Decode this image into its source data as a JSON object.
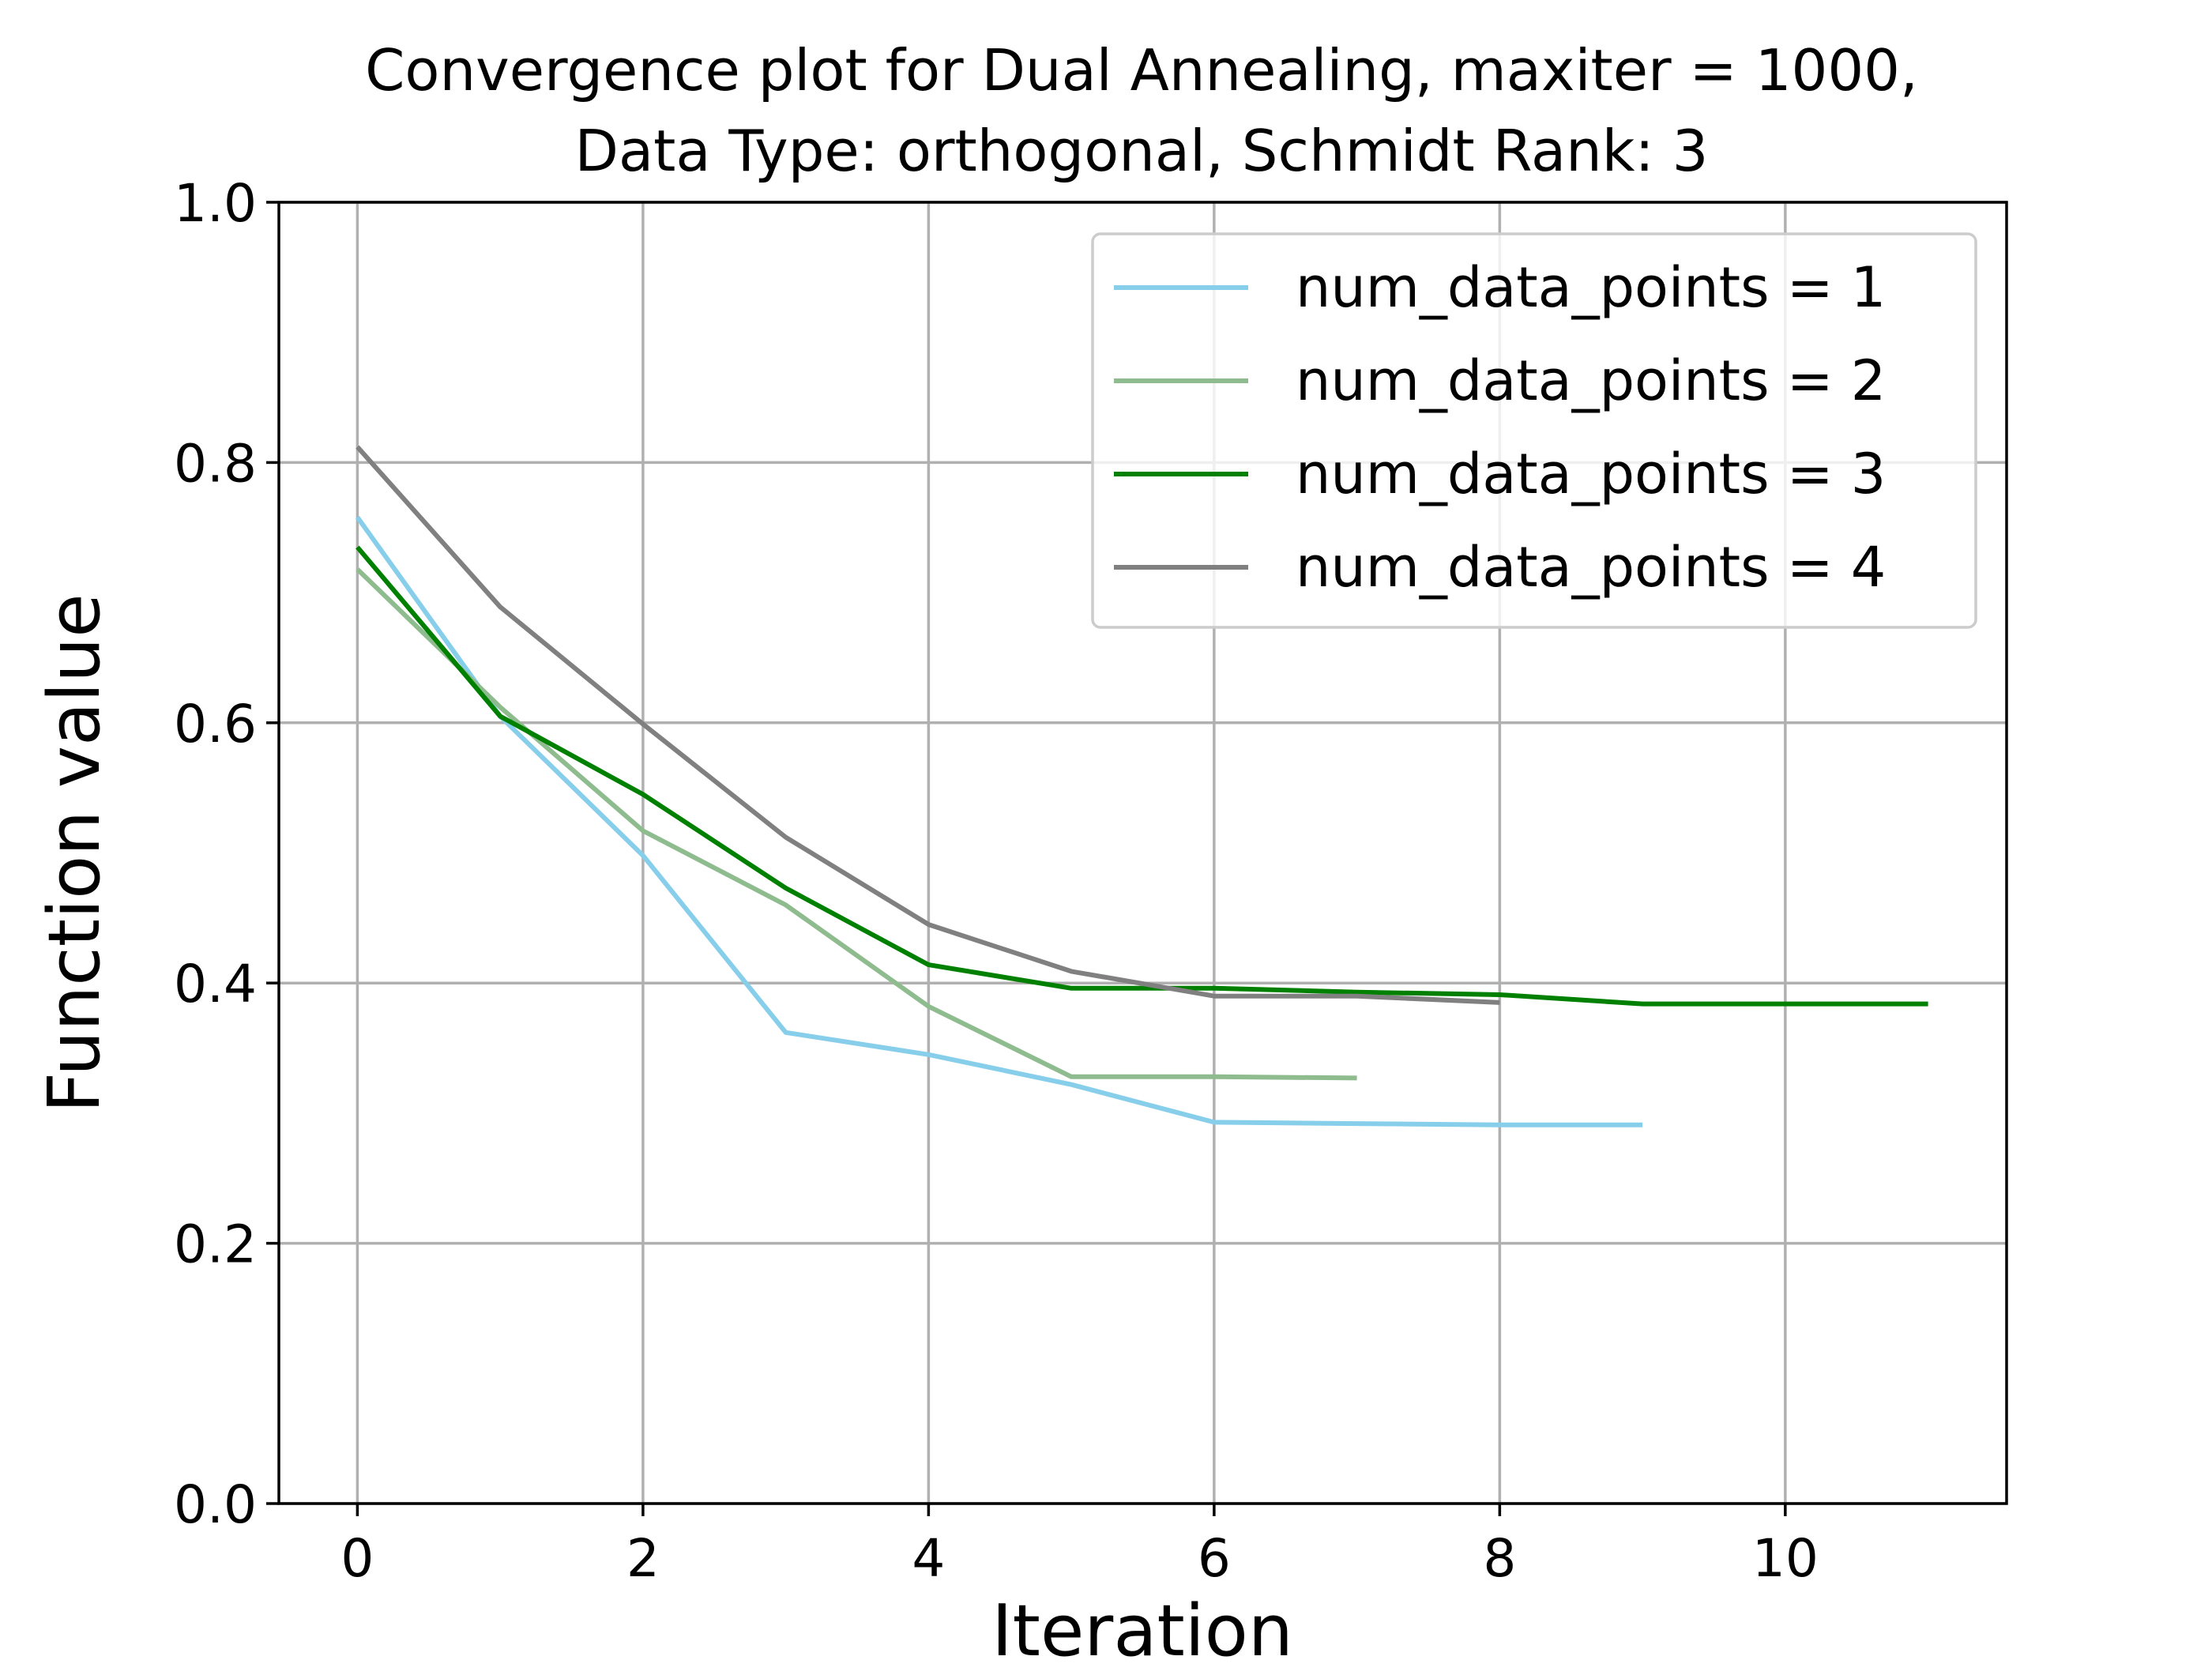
{
  "chart_data": {
    "type": "line",
    "title_lines": [
      "Convergence plot for Dual Annealing, maxiter = 1000,",
      "Data Type: orthogonal, Schmidt Rank: 3"
    ],
    "xlabel": "Iteration",
    "ylabel": "Function value",
    "xlim": [
      -0.55,
      11.55
    ],
    "ylim": [
      0.0,
      1.0
    ],
    "x_ticks": [
      0,
      2,
      4,
      6,
      8,
      10
    ],
    "x_tick_labels": [
      "0",
      "2",
      "4",
      "6",
      "8",
      "10"
    ],
    "y_ticks": [
      0.0,
      0.2,
      0.4,
      0.6,
      0.8,
      1.0
    ],
    "y_tick_labels": [
      "0.0",
      "0.2",
      "0.4",
      "0.6",
      "0.8",
      "1.0"
    ],
    "grid": true,
    "legend_position": "top-right",
    "series": [
      {
        "name": "num_data_points = 1",
        "color": "#87ceeb",
        "x": [
          0,
          1,
          2,
          3,
          4,
          5,
          6,
          7,
          8,
          9
        ],
        "y": [
          0.758,
          0.605,
          0.498,
          0.362,
          0.345,
          0.322,
          0.293,
          0.292,
          0.291,
          0.291
        ]
      },
      {
        "name": "num_data_points = 2",
        "color": "#8fbc8f",
        "x": [
          0,
          1,
          2,
          3,
          4,
          5,
          6,
          7
        ],
        "y": [
          0.718,
          0.612,
          0.517,
          0.46,
          0.382,
          0.328,
          0.328,
          0.327
        ]
      },
      {
        "name": "num_data_points = 3",
        "color": "#008000",
        "x": [
          0,
          1,
          2,
          3,
          4,
          5,
          6,
          7,
          8,
          9,
          10,
          11
        ],
        "y": [
          0.735,
          0.605,
          0.545,
          0.473,
          0.414,
          0.396,
          0.396,
          0.393,
          0.391,
          0.384,
          0.384,
          0.384
        ]
      },
      {
        "name": "num_data_points = 4",
        "color": "#808080",
        "x": [
          0,
          1,
          2,
          3,
          4,
          5,
          6,
          7,
          8
        ],
        "y": [
          0.812,
          0.689,
          0.599,
          0.512,
          0.445,
          0.409,
          0.39,
          0.39,
          0.385
        ]
      }
    ]
  }
}
